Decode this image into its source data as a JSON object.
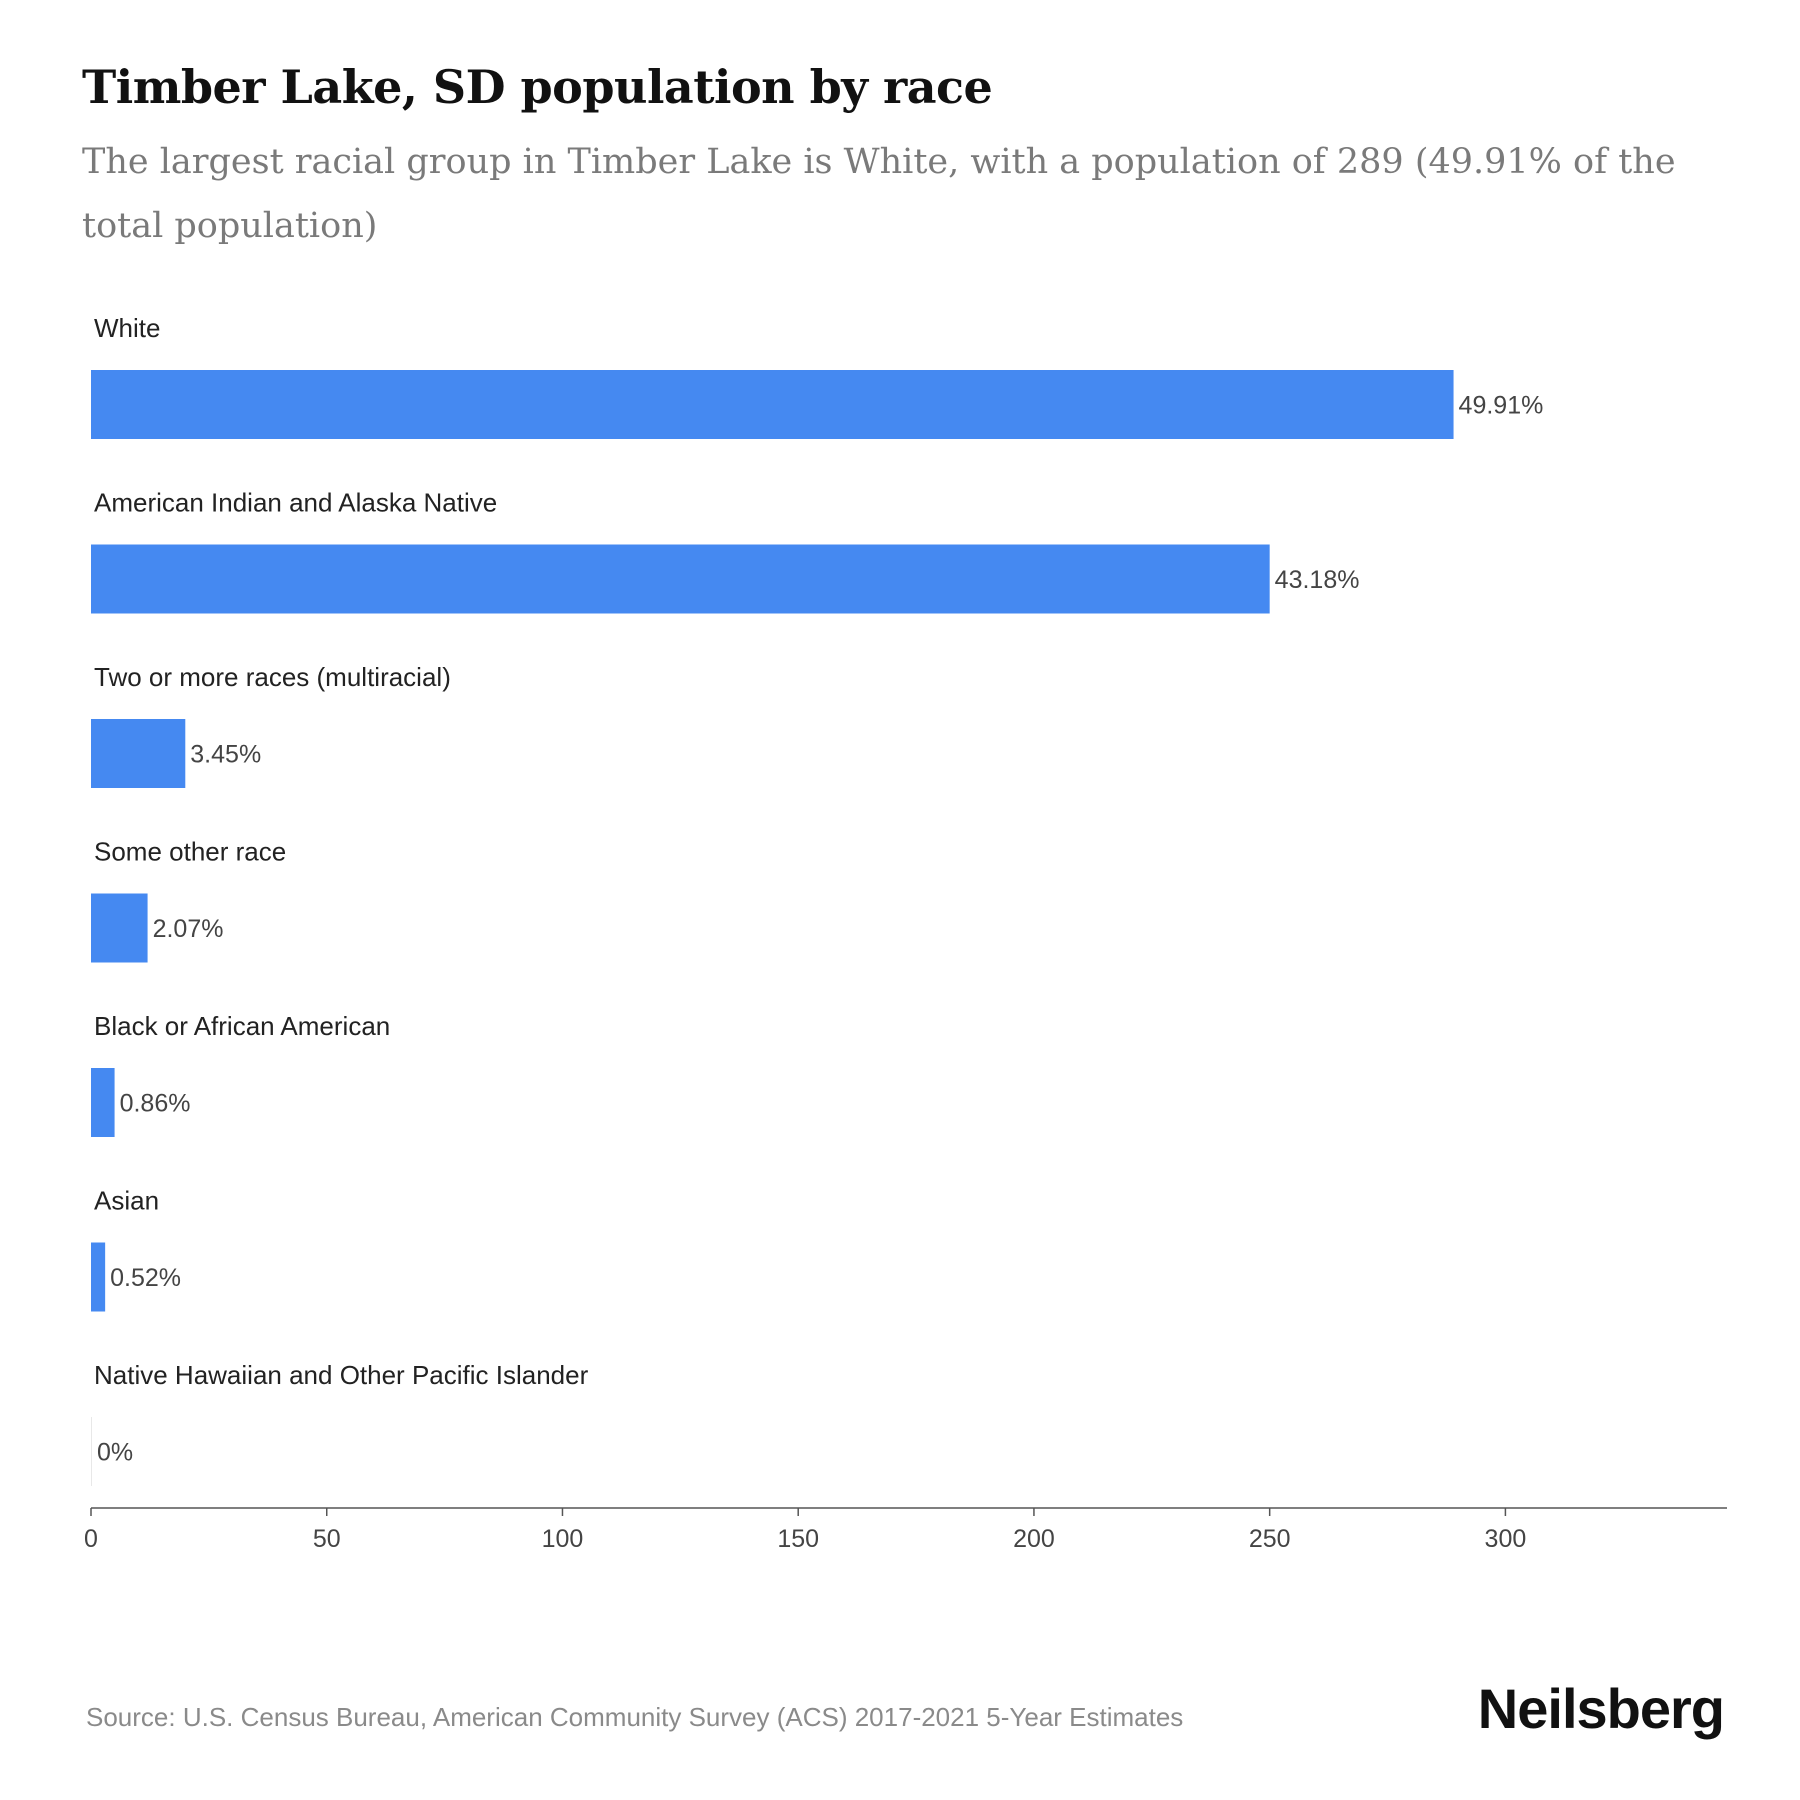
{
  "header": {
    "title": "Timber Lake, SD population by race",
    "subtitle": "The largest racial group in Timber Lake is White, with a population of 289 (49.91% of the total population)"
  },
  "chart_data": {
    "type": "bar",
    "orientation": "horizontal",
    "categories": [
      "White",
      "American Indian and Alaska Native",
      "Two or more races (multiracial)",
      "Some other race",
      "Black or African American",
      "Asian",
      "Native Hawaiian and Other Pacific Islander"
    ],
    "values": [
      289,
      250,
      20,
      12,
      5,
      3,
      0
    ],
    "data_labels": [
      "49.91%",
      "43.18%",
      "3.45%",
      "2.07%",
      "0.86%",
      "0.52%",
      "0%"
    ],
    "xlim": [
      0,
      347
    ],
    "xticks": [
      0,
      50,
      100,
      150,
      200,
      250,
      300
    ],
    "grid": false,
    "bar_color": "#4589f1"
  },
  "footer": {
    "source": "Source: U.S. Census Bureau, American Community Survey (ACS) 2017-2021 5-Year Estimates",
    "brand": "Neilsberg"
  }
}
